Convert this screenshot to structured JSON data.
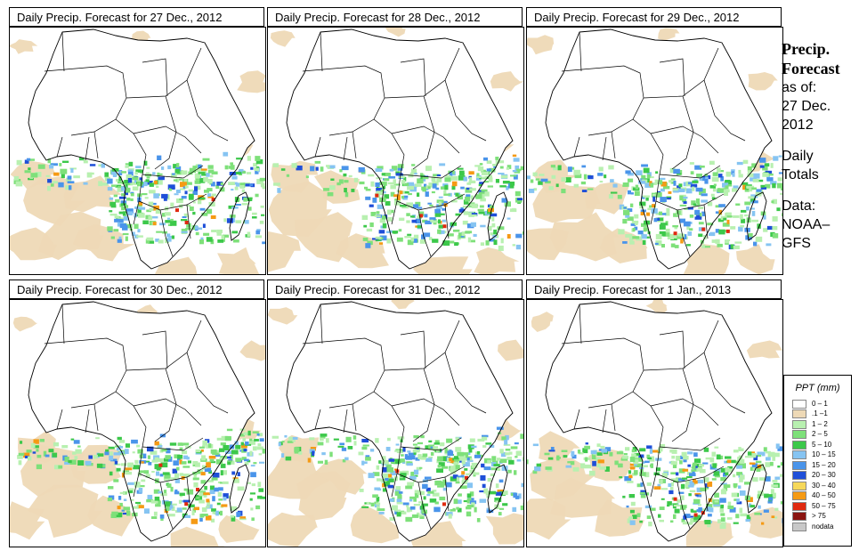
{
  "panels": [
    {
      "title": "Daily Precip. Forecast for  27 Dec., 2012",
      "variant": 0
    },
    {
      "title": "Daily Precip. Forecast for  28 Dec., 2012",
      "variant": 1
    },
    {
      "title": "Daily Precip. Forecast for  29 Dec., 2012",
      "variant": 2
    },
    {
      "title": "Daily Precip. Forecast for  30 Dec., 2012",
      "variant": 3
    },
    {
      "title": "Daily Precip. Forecast for  31 Dec., 2012",
      "variant": 4
    },
    {
      "title": "Daily Precip. Forecast for  1 Jan., 2013",
      "variant": 5
    }
  ],
  "side_info": {
    "heading_line1": "Precip.",
    "heading_line2": "Forecast",
    "asof_line1": "as of:",
    "asof_line2": "27 Dec.",
    "asof_line3": "2012",
    "totals_line1": "Daily",
    "totals_line2": "Totals",
    "data_line1": "Data:",
    "data_line2": "NOAA–",
    "data_line3": "GFS"
  },
  "legend": {
    "title": "PPT (mm)",
    "items": [
      {
        "label": "0 – 1",
        "color": "#ffffff"
      },
      {
        "label": ".1 –1",
        "color": "#eed9b6"
      },
      {
        "label": "1 – 2",
        "color": "#b8f0b0"
      },
      {
        "label": "2 – 5",
        "color": "#7ee07a"
      },
      {
        "label": "5 – 10",
        "color": "#3cc84a"
      },
      {
        "label": "10 – 15",
        "color": "#86c4f2"
      },
      {
        "label": "15 – 20",
        "color": "#4a94ea"
      },
      {
        "label": "20 – 30",
        "color": "#1f4fd8"
      },
      {
        "label": "30 – 40",
        "color": "#f6d85a"
      },
      {
        "label": "40 – 50",
        "color": "#f59a14"
      },
      {
        "label": "50 – 75",
        "color": "#e02a10"
      },
      {
        "label": "> 75",
        "color": "#8a1410"
      },
      {
        "label": "nodata",
        "color": "#c8c8c8"
      }
    ]
  },
  "colors": {
    "land_base": "#ffffff",
    "light": "#eed9b6",
    "border": "#000000"
  }
}
